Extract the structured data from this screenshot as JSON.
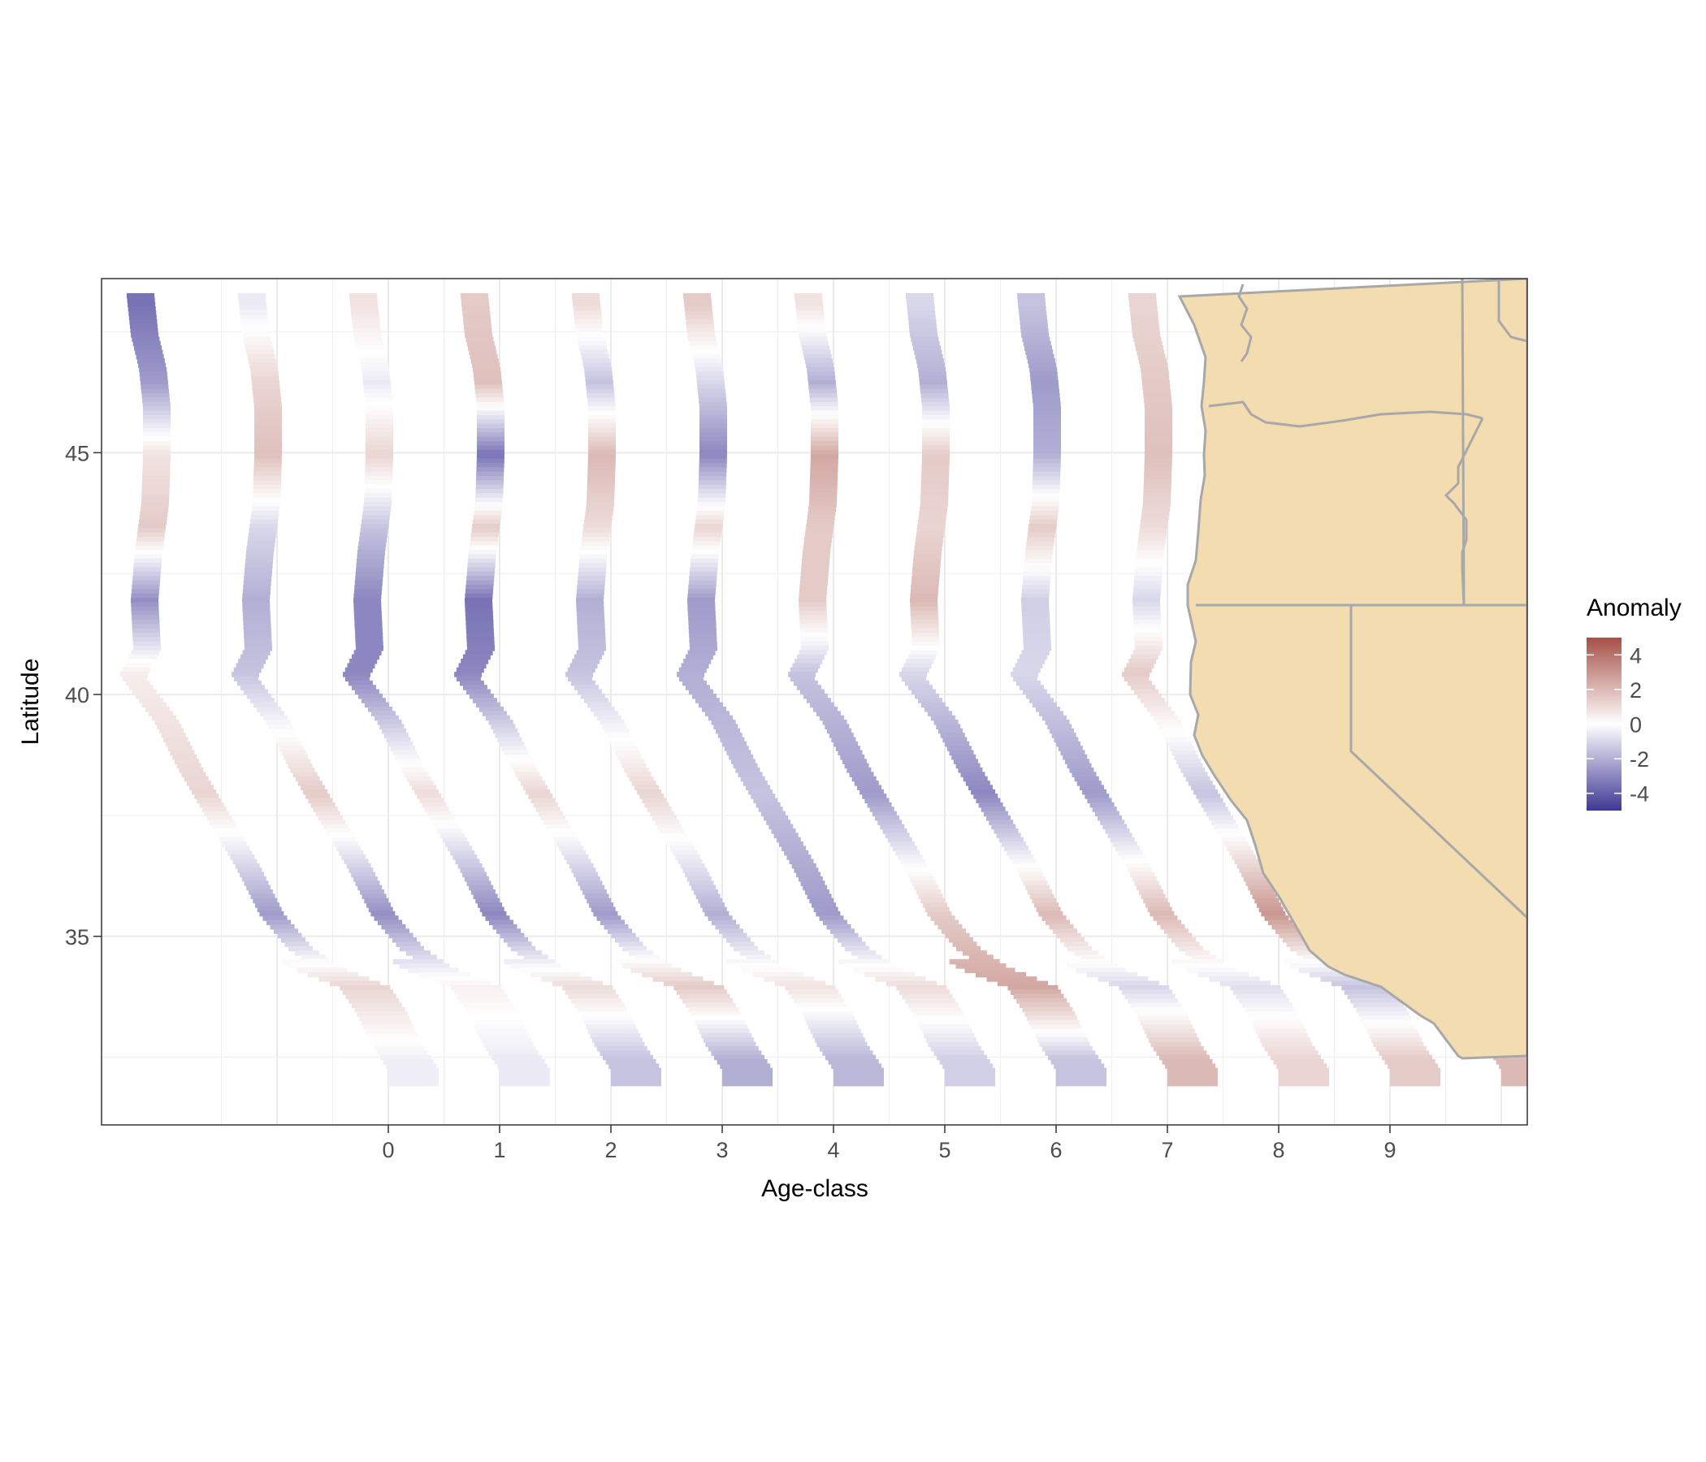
{
  "chart_data": {
    "type": "heatmap",
    "title": "",
    "xlabel": "Age-class",
    "ylabel": "Latitude",
    "x_ticks": [
      "0",
      "1",
      "2",
      "3",
      "4",
      "5",
      "6",
      "7",
      "8",
      "9"
    ],
    "y_ticks": [
      35,
      40,
      45
    ],
    "ylim": [
      31.1,
      48.6
    ],
    "grid": true,
    "colorbar": {
      "title": "Anomaly",
      "ticks": [
        4,
        2,
        0,
        -2,
        -4
      ],
      "range": [
        -5,
        5
      ],
      "low_color": "#3f3796",
      "mid_color": "#ffffff",
      "high_color": "#a65046"
    },
    "series": [
      {
        "name": "-3",
        "profile": [
          {
            "lat": 48.1,
            "anomaly": -3.5
          },
          {
            "lat": 46.5,
            "anomaly": -2.5
          },
          {
            "lat": 45.0,
            "anomaly": 0.8
          },
          {
            "lat": 43.5,
            "anomaly": 1.5
          },
          {
            "lat": 42.0,
            "anomaly": -2.8
          },
          {
            "lat": 40.5,
            "anomaly": 0.5
          },
          {
            "lat": 38.0,
            "anomaly": 1.2
          },
          {
            "lat": 35.5,
            "anomaly": -2.5
          },
          {
            "lat": 34.0,
            "anomaly": 1.2
          },
          {
            "lat": 32.5,
            "anomaly": -0.4
          }
        ]
      },
      {
        "name": "-2",
        "profile": [
          {
            "lat": 48.1,
            "anomaly": -0.5
          },
          {
            "lat": 46.5,
            "anomaly": 1.2
          },
          {
            "lat": 45.0,
            "anomaly": 1.8
          },
          {
            "lat": 43.5,
            "anomaly": -1.0
          },
          {
            "lat": 42.0,
            "anomaly": -2.0
          },
          {
            "lat": 40.5,
            "anomaly": -1.5
          },
          {
            "lat": 38.0,
            "anomaly": 1.5
          },
          {
            "lat": 35.5,
            "anomaly": -2.8
          },
          {
            "lat": 34.0,
            "anomaly": 0.4
          },
          {
            "lat": 32.5,
            "anomaly": -0.5
          }
        ]
      },
      {
        "name": "-1",
        "profile": [
          {
            "lat": 48.1,
            "anomaly": 0.8
          },
          {
            "lat": 46.5,
            "anomaly": -0.5
          },
          {
            "lat": 45.0,
            "anomaly": 1.2
          },
          {
            "lat": 43.5,
            "anomaly": -1.5
          },
          {
            "lat": 42.0,
            "anomaly": -3.0
          },
          {
            "lat": 40.5,
            "anomaly": -3.0
          },
          {
            "lat": 38.0,
            "anomaly": 1.0
          },
          {
            "lat": 35.5,
            "anomaly": -3.0
          },
          {
            "lat": 34.0,
            "anomaly": 1.0
          },
          {
            "lat": 32.5,
            "anomaly": -1.5
          }
        ]
      },
      {
        "name": "0",
        "profile": [
          {
            "lat": 48.1,
            "anomaly": 1.5
          },
          {
            "lat": 46.5,
            "anomaly": 1.8
          },
          {
            "lat": 45.0,
            "anomaly": -3.5
          },
          {
            "lat": 43.5,
            "anomaly": 1.5
          },
          {
            "lat": 42.0,
            "anomaly": -3.5
          },
          {
            "lat": 40.5,
            "anomaly": -3.0
          },
          {
            "lat": 38.0,
            "anomaly": 1.2
          },
          {
            "lat": 35.5,
            "anomaly": -2.5
          },
          {
            "lat": 34.0,
            "anomaly": 1.5
          },
          {
            "lat": 32.5,
            "anomaly": -2.0
          }
        ]
      },
      {
        "name": "1",
        "profile": [
          {
            "lat": 48.1,
            "anomaly": 1.0
          },
          {
            "lat": 46.5,
            "anomaly": -1.5
          },
          {
            "lat": 45.0,
            "anomaly": 2.0
          },
          {
            "lat": 43.5,
            "anomaly": 1.0
          },
          {
            "lat": 42.0,
            "anomaly": -2.0
          },
          {
            "lat": 40.5,
            "anomaly": -1.5
          },
          {
            "lat": 38.0,
            "anomaly": 1.2
          },
          {
            "lat": 35.5,
            "anomaly": -2.0
          },
          {
            "lat": 34.0,
            "anomaly": 0.8
          },
          {
            "lat": 32.5,
            "anomaly": -1.8
          }
        ]
      },
      {
        "name": "2",
        "profile": [
          {
            "lat": 48.1,
            "anomaly": 1.5
          },
          {
            "lat": 46.5,
            "anomaly": -1.0
          },
          {
            "lat": 45.0,
            "anomaly": -3.0
          },
          {
            "lat": 43.5,
            "anomaly": 1.2
          },
          {
            "lat": 42.0,
            "anomaly": -2.5
          },
          {
            "lat": 40.5,
            "anomaly": -2.0
          },
          {
            "lat": 38.0,
            "anomaly": -1.5
          },
          {
            "lat": 35.5,
            "anomaly": -2.5
          },
          {
            "lat": 34.0,
            "anomaly": 1.0
          },
          {
            "lat": 32.5,
            "anomaly": -1.2
          }
        ]
      },
      {
        "name": "3",
        "profile": [
          {
            "lat": 48.1,
            "anomaly": 0.8
          },
          {
            "lat": 46.5,
            "anomaly": -2.0
          },
          {
            "lat": 45.0,
            "anomaly": 2.5
          },
          {
            "lat": 43.5,
            "anomaly": 1.5
          },
          {
            "lat": 42.0,
            "anomaly": 1.5
          },
          {
            "lat": 40.5,
            "anomaly": -1.5
          },
          {
            "lat": 38.0,
            "anomaly": -2.5
          },
          {
            "lat": 35.5,
            "anomaly": 1.5
          },
          {
            "lat": 34.0,
            "anomaly": 2.5
          },
          {
            "lat": 32.5,
            "anomaly": -1.5
          }
        ]
      },
      {
        "name": "4",
        "profile": [
          {
            "lat": 48.1,
            "anomaly": -1.0
          },
          {
            "lat": 46.5,
            "anomaly": -2.0
          },
          {
            "lat": 45.0,
            "anomaly": 1.5
          },
          {
            "lat": 43.5,
            "anomaly": 1.2
          },
          {
            "lat": 42.0,
            "anomaly": 2.0
          },
          {
            "lat": 40.5,
            "anomaly": -1.0
          },
          {
            "lat": 38.0,
            "anomaly": -3.0
          },
          {
            "lat": 35.5,
            "anomaly": 2.0
          },
          {
            "lat": 34.0,
            "anomaly": -1.0
          },
          {
            "lat": 32.5,
            "anomaly": 2.0
          }
        ]
      },
      {
        "name": "5",
        "profile": [
          {
            "lat": 48.1,
            "anomaly": -1.5
          },
          {
            "lat": 46.5,
            "anomaly": -2.5
          },
          {
            "lat": 45.0,
            "anomaly": -2.0
          },
          {
            "lat": 43.5,
            "anomaly": 1.5
          },
          {
            "lat": 42.0,
            "anomaly": -1.2
          },
          {
            "lat": 40.5,
            "anomaly": -1.0
          },
          {
            "lat": 38.0,
            "anomaly": -2.5
          },
          {
            "lat": 35.5,
            "anomaly": 2.0
          },
          {
            "lat": 34.0,
            "anomaly": -0.8
          },
          {
            "lat": 32.5,
            "anomaly": 1.2
          }
        ]
      },
      {
        "name": "6",
        "profile": [
          {
            "lat": 48.1,
            "anomaly": 1.2
          },
          {
            "lat": 46.5,
            "anomaly": 1.5
          },
          {
            "lat": 45.0,
            "anomaly": 1.8
          },
          {
            "lat": 43.5,
            "anomaly": 1.0
          },
          {
            "lat": 42.0,
            "anomaly": -1.0
          },
          {
            "lat": 40.5,
            "anomaly": 1.5
          },
          {
            "lat": 38.0,
            "anomaly": -1.5
          },
          {
            "lat": 35.5,
            "anomaly": 3.0
          },
          {
            "lat": 34.0,
            "anomaly": -1.5
          },
          {
            "lat": 32.5,
            "anomaly": 1.5
          }
        ]
      },
      {
        "name": "7",
        "profile": [
          {
            "lat": 48.1,
            "anomaly": -1.5
          },
          {
            "lat": 46.5,
            "anomaly": -2.5
          },
          {
            "lat": 45.0,
            "anomaly": -1.5
          },
          {
            "lat": 43.5,
            "anomaly": -1.0
          },
          {
            "lat": 42.0,
            "anomaly": -1.5
          },
          {
            "lat": 40.5,
            "anomaly": -1.5
          },
          {
            "lat": 38.0,
            "anomaly": -2.0
          },
          {
            "lat": 35.5,
            "anomaly": 1.5
          },
          {
            "lat": 34.0,
            "anomaly": -1.5
          },
          {
            "lat": 32.5,
            "anomaly": 2.0
          }
        ]
      }
    ]
  },
  "map": {
    "land_color": "#f3dcaf",
    "border_color": "#a8a8a8"
  }
}
